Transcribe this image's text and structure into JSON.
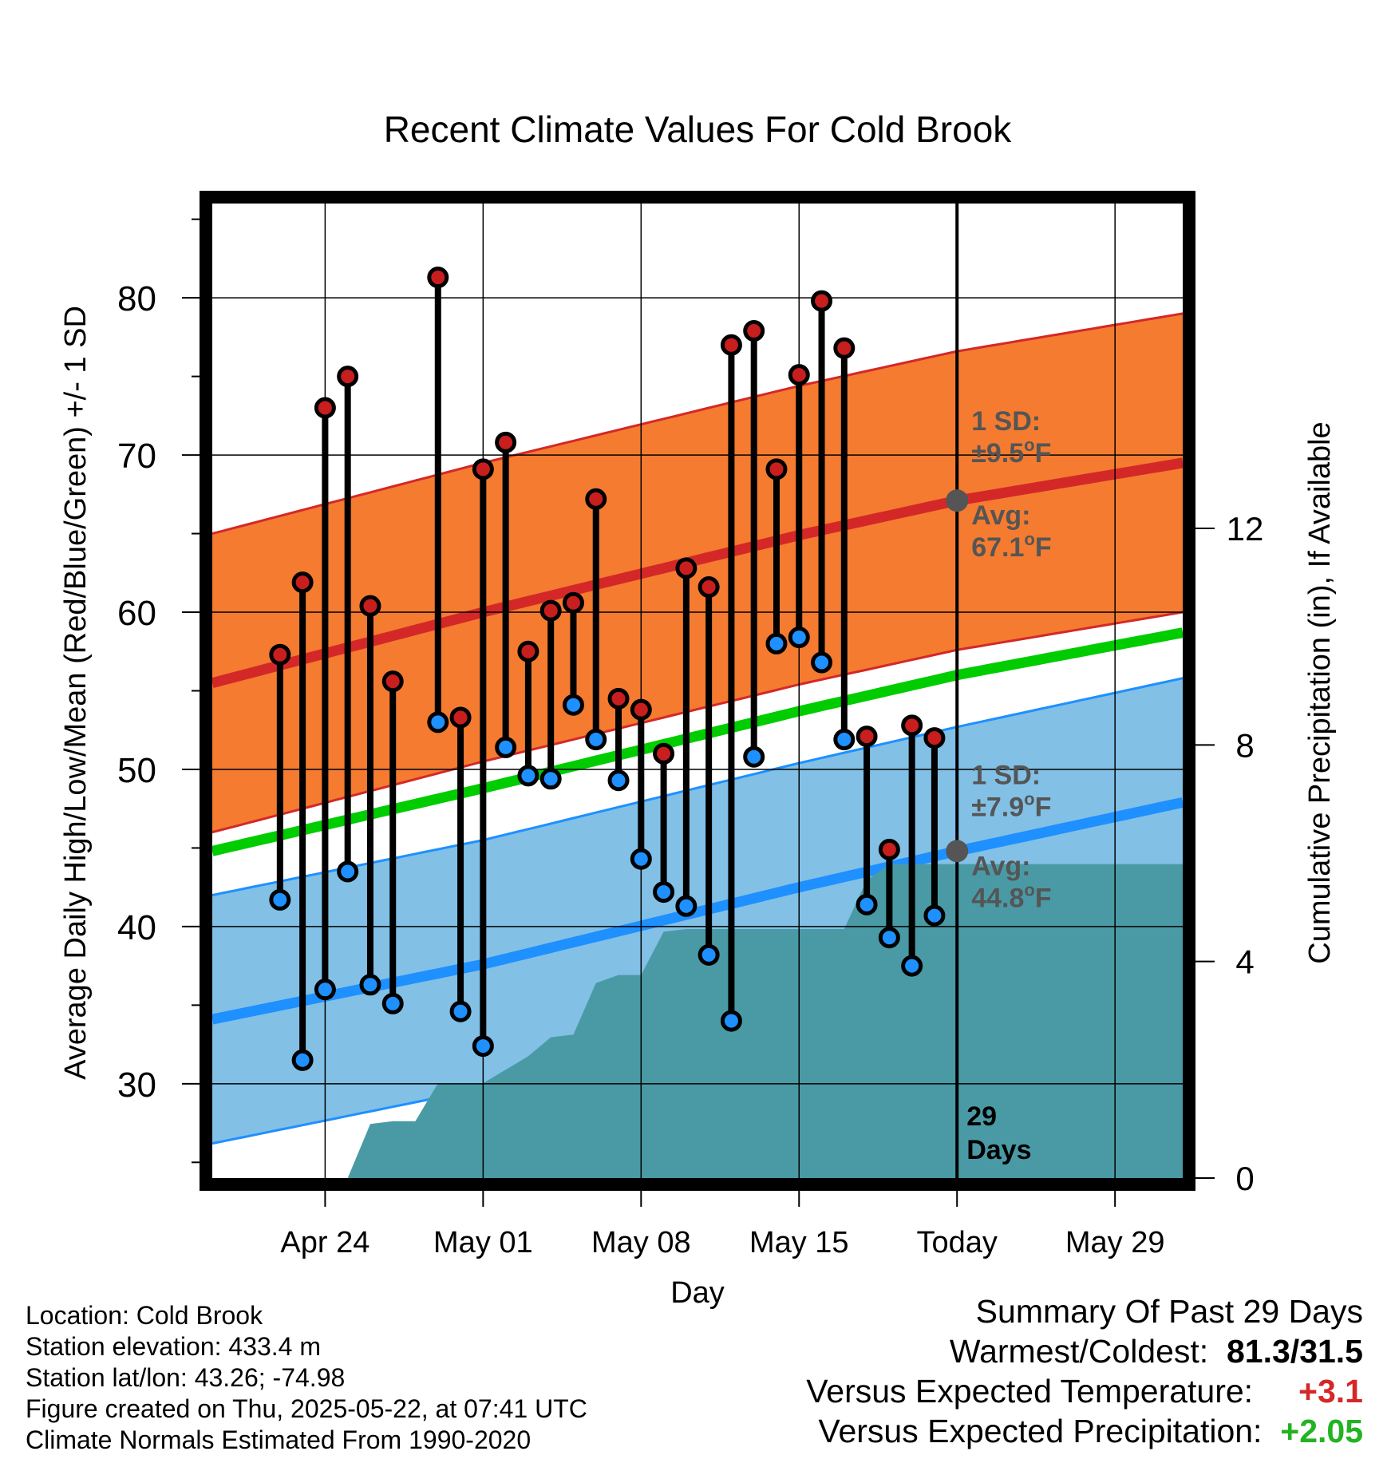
{
  "chart_data": {
    "type": "line",
    "title": "Recent Climate Values For Cold Brook",
    "xlabel": "Day",
    "ylabel": "Average Daily High/Low/Mean (Red/Blue/Green) +/- 1 SD",
    "y2label": "Cumulative Precipitation (in), If Available",
    "ylim": [
      24,
      86
    ],
    "y2lim": [
      0,
      18
    ],
    "xlim": [
      "2025-04-19",
      "2025-06-01"
    ],
    "y_ticks": [
      30,
      40,
      50,
      60,
      70,
      80
    ],
    "y2_ticks": [
      0,
      4,
      8,
      12
    ],
    "x_ticks": [
      {
        "date": "2025-04-24",
        "label": "Apr 24"
      },
      {
        "date": "2025-05-01",
        "label": "May 01"
      },
      {
        "date": "2025-05-08",
        "label": "May 08"
      },
      {
        "date": "2025-05-15",
        "label": "May 15"
      },
      {
        "date": "2025-05-22",
        "label": "Today"
      },
      {
        "date": "2025-05-29",
        "label": "May 29"
      }
    ],
    "grid": true,
    "colors": {
      "high_band": "#f47b30",
      "high_avg": "#d42828",
      "low_band": "#82c0e6",
      "low_avg": "#1e90ff",
      "mean": "#00cc00",
      "precip": "#4a9aa5",
      "high_dot": "#c81e1e",
      "low_dot": "#1e90ff",
      "today_marker": "#555555"
    },
    "normals": {
      "dates": [
        "2025-04-19",
        "2025-05-01",
        "2025-05-15",
        "2025-05-22",
        "2025-06-01"
      ],
      "high_avg": [
        55.5,
        60.0,
        64.9,
        67.1,
        69.5
      ],
      "high_sd": 9.5,
      "low_avg": [
        34.1,
        37.6,
        42.5,
        44.8,
        47.9
      ],
      "low_sd": 7.9,
      "mean": [
        44.8,
        48.8,
        53.7,
        56.0,
        58.7
      ]
    },
    "series": [
      {
        "name": "High",
        "x": [
          "2025-04-22",
          "2025-04-23",
          "2025-04-24",
          "2025-04-25",
          "2025-04-26",
          "2025-04-27",
          "2025-04-29",
          "2025-04-30",
          "2025-05-01",
          "2025-05-02",
          "2025-05-03",
          "2025-05-04",
          "2025-05-05",
          "2025-05-06",
          "2025-05-07",
          "2025-05-08",
          "2025-05-09",
          "2025-05-10",
          "2025-05-11",
          "2025-05-12",
          "2025-05-13",
          "2025-05-14",
          "2025-05-15",
          "2025-05-16",
          "2025-05-17",
          "2025-05-18",
          "2025-05-19",
          "2025-05-20",
          "2025-05-21"
        ],
        "values": [
          57.3,
          61.9,
          73.0,
          75.0,
          60.4,
          55.6,
          81.3,
          53.3,
          69.1,
          70.8,
          57.5,
          60.1,
          60.6,
          67.2,
          54.5,
          53.8,
          51.0,
          62.8,
          61.6,
          77.0,
          77.9,
          69.1,
          75.1,
          79.8,
          76.8,
          52.1,
          44.9,
          52.8,
          52.0
        ]
      },
      {
        "name": "Low",
        "x": [
          "2025-04-22",
          "2025-04-23",
          "2025-04-24",
          "2025-04-25",
          "2025-04-26",
          "2025-04-27",
          "2025-04-29",
          "2025-04-30",
          "2025-05-01",
          "2025-05-02",
          "2025-05-03",
          "2025-05-04",
          "2025-05-05",
          "2025-05-06",
          "2025-05-07",
          "2025-05-08",
          "2025-05-09",
          "2025-05-10",
          "2025-05-11",
          "2025-05-12",
          "2025-05-13",
          "2025-05-14",
          "2025-05-15",
          "2025-05-16",
          "2025-05-17",
          "2025-05-18",
          "2025-05-19",
          "2025-05-20",
          "2025-05-21"
        ],
        "values": [
          41.7,
          31.5,
          36.0,
          43.5,
          36.3,
          35.1,
          53.0,
          34.6,
          32.4,
          51.4,
          49.6,
          49.4,
          54.1,
          51.9,
          49.3,
          44.3,
          42.2,
          41.3,
          38.2,
          34.0,
          50.8,
          58.0,
          58.4,
          56.8,
          51.9,
          41.4,
          39.3,
          37.5,
          40.7
        ]
      },
      {
        "name": "Cumulative Precipitation",
        "axis": "y2",
        "x": [
          "2025-04-23",
          "2025-04-24",
          "2025-04-25",
          "2025-04-26",
          "2025-04-27",
          "2025-04-28",
          "2025-04-29",
          "2025-04-30",
          "2025-05-01",
          "2025-05-02",
          "2025-05-03",
          "2025-05-04",
          "2025-05-05",
          "2025-05-06",
          "2025-05-07",
          "2025-05-08",
          "2025-05-09",
          "2025-05-10",
          "2025-05-11",
          "2025-05-12",
          "2025-05-13",
          "2025-05-14",
          "2025-05-15",
          "2025-05-16",
          "2025-05-17",
          "2025-05-18",
          "2025-05-19",
          "2025-05-20",
          "2025-05-21",
          "2025-05-22",
          "2025-06-01"
        ],
        "values": [
          0,
          0,
          0,
          1.0,
          1.05,
          1.05,
          1.75,
          1.75,
          1.75,
          2.0,
          2.25,
          2.6,
          2.65,
          3.6,
          3.75,
          3.75,
          4.55,
          4.6,
          4.6,
          4.6,
          4.6,
          4.6,
          4.6,
          4.6,
          4.6,
          5.5,
          5.8,
          5.8,
          5.8,
          5.8,
          5.8
        ]
      }
    ],
    "annotations": {
      "high_sd_label": "1 SD:",
      "high_sd_value": "±9.5",
      "high_avg_label": "Avg:",
      "high_avg_value": "67.1",
      "low_sd_label": "1 SD:",
      "low_sd_value": "±7.9",
      "low_avg_label": "Avg:",
      "low_avg_value": "44.8",
      "unit_super": "o",
      "unit_letter": "F",
      "days_count": "29",
      "days_word": "Days"
    }
  },
  "info": {
    "location": "Location: Cold Brook",
    "elevation": "Station elevation: 433.4 m",
    "latlon": "Station lat/lon: 43.26; -74.98",
    "created": "Figure created on Thu, 2025-05-22, at 07:41 UTC",
    "normals": "Climate Normals Estimated From 1990-2020"
  },
  "summary": {
    "title": "Summary Of Past 29 Days",
    "warm_cold_label": "Warmest/Coldest:",
    "warm_cold_value": "81.3/31.5",
    "temp_label": "Versus Expected Temperature:",
    "temp_value": "+3.1",
    "precip_label": "Versus Expected Precipitation:",
    "precip_value": "+2.05",
    "temp_color": "#d42828",
    "precip_color": "#22b322"
  }
}
